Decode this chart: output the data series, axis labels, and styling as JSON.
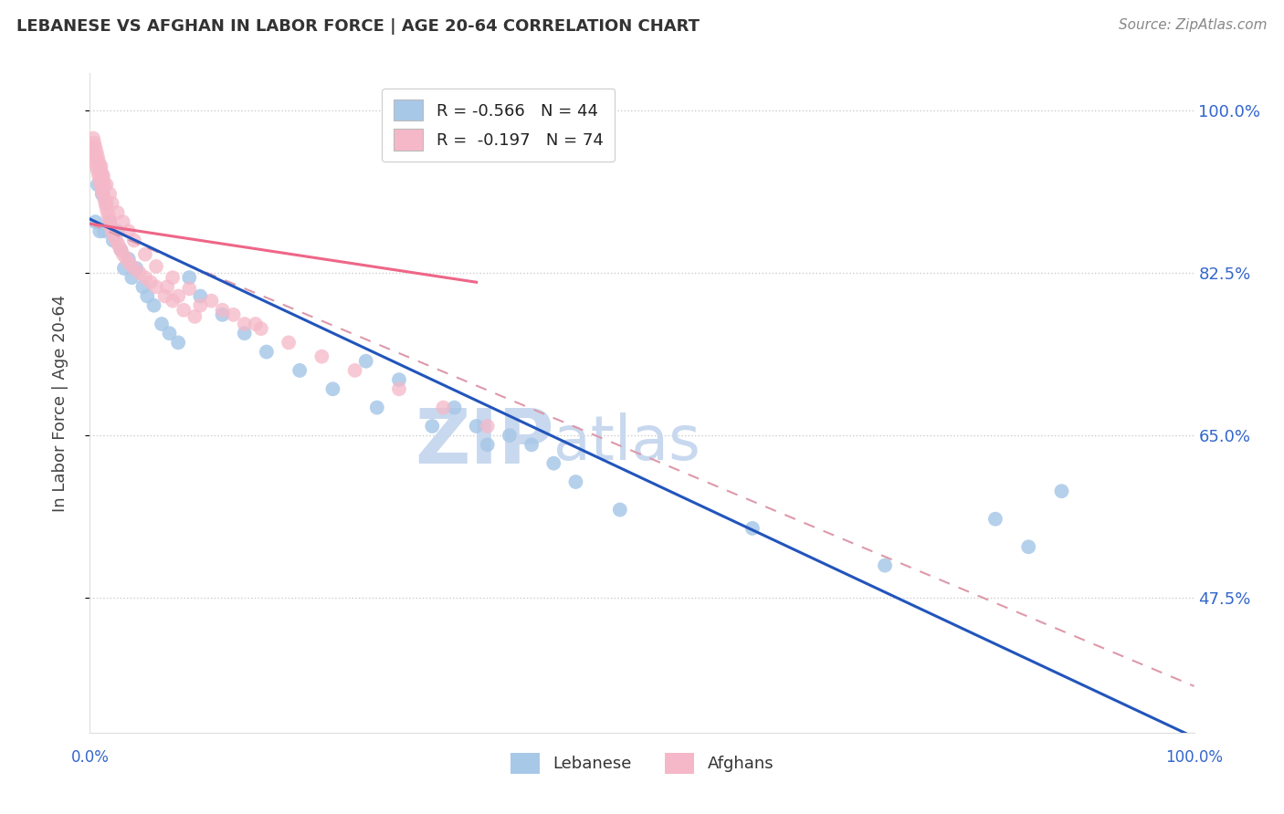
{
  "title": "LEBANESE VS AFGHAN IN LABOR FORCE | AGE 20-64 CORRELATION CHART",
  "source": "Source: ZipAtlas.com",
  "ylabel": "In Labor Force | Age 20-64",
  "yticks": [
    0.475,
    0.65,
    0.825,
    1.0
  ],
  "ytick_labels": [
    "47.5%",
    "65.0%",
    "82.5%",
    "100.0%"
  ],
  "legend_entry1": "R = -0.566   N = 44",
  "legend_entry2": "R =  -0.197   N = 74",
  "legend_label1": "Lebanese",
  "legend_label2": "Afghans",
  "blue_color": "#a8c8e8",
  "pink_color": "#f5b8c8",
  "blue_line_color": "#2255bb",
  "pink_line_color": "#ee6688",
  "dashed_line_color": "#dd99aa",
  "watermark_zip": "ZIP",
  "watermark_atlas": "atlas",
  "watermark_color_zip": "#c8d8ee",
  "watermark_color_atlas": "#c8d8ee",
  "xlim": [
    0.0,
    1.0
  ],
  "ylim": [
    0.33,
    1.04
  ],
  "blue_line_x0": 0.0,
  "blue_line_y0": 0.883,
  "blue_line_x1": 1.0,
  "blue_line_y1": 0.325,
  "pink_line_x0": 0.0,
  "pink_line_y0": 0.878,
  "pink_line_x1": 0.35,
  "pink_line_y1": 0.815,
  "dash_line_x0": 0.0,
  "dash_line_y0": 0.878,
  "dash_line_x1": 1.0,
  "dash_line_y1": 0.38,
  "blue_x": [
    0.005,
    0.007,
    0.009,
    0.011,
    0.013,
    0.015,
    0.018,
    0.021,
    0.025,
    0.028,
    0.031,
    0.035,
    0.038,
    0.042,
    0.048,
    0.052,
    0.058,
    0.065,
    0.072,
    0.08,
    0.09,
    0.1,
    0.12,
    0.14,
    0.16,
    0.19,
    0.22,
    0.26,
    0.31,
    0.36,
    0.25,
    0.28,
    0.33,
    0.38,
    0.42,
    0.6,
    0.72,
    0.82,
    0.35,
    0.4,
    0.44,
    0.48,
    0.85,
    0.88
  ],
  "blue_y": [
    0.88,
    0.92,
    0.87,
    0.91,
    0.87,
    0.9,
    0.88,
    0.86,
    0.87,
    0.85,
    0.83,
    0.84,
    0.82,
    0.83,
    0.81,
    0.8,
    0.79,
    0.77,
    0.76,
    0.75,
    0.82,
    0.8,
    0.78,
    0.76,
    0.74,
    0.72,
    0.7,
    0.68,
    0.66,
    0.64,
    0.73,
    0.71,
    0.68,
    0.65,
    0.62,
    0.55,
    0.51,
    0.56,
    0.66,
    0.64,
    0.6,
    0.57,
    0.53,
    0.59
  ],
  "pink_x": [
    0.002,
    0.003,
    0.003,
    0.004,
    0.004,
    0.005,
    0.005,
    0.006,
    0.006,
    0.007,
    0.007,
    0.008,
    0.008,
    0.009,
    0.009,
    0.01,
    0.01,
    0.011,
    0.011,
    0.012,
    0.012,
    0.013,
    0.013,
    0.014,
    0.015,
    0.016,
    0.017,
    0.018,
    0.019,
    0.02,
    0.022,
    0.024,
    0.026,
    0.028,
    0.03,
    0.033,
    0.036,
    0.04,
    0.045,
    0.05,
    0.055,
    0.06,
    0.068,
    0.075,
    0.085,
    0.095,
    0.01,
    0.012,
    0.015,
    0.018,
    0.02,
    0.025,
    0.03,
    0.035,
    0.04,
    0.05,
    0.06,
    0.075,
    0.09,
    0.11,
    0.13,
    0.155,
    0.18,
    0.21,
    0.24,
    0.28,
    0.32,
    0.36,
    0.12,
    0.15,
    0.07,
    0.08,
    0.1,
    0.14
  ],
  "pink_y": [
    0.96,
    0.955,
    0.97,
    0.95,
    0.965,
    0.945,
    0.96,
    0.94,
    0.955,
    0.935,
    0.95,
    0.93,
    0.945,
    0.925,
    0.94,
    0.92,
    0.935,
    0.915,
    0.93,
    0.91,
    0.925,
    0.905,
    0.92,
    0.9,
    0.895,
    0.89,
    0.885,
    0.88,
    0.875,
    0.87,
    0.865,
    0.86,
    0.855,
    0.85,
    0.845,
    0.84,
    0.835,
    0.83,
    0.825,
    0.82,
    0.815,
    0.81,
    0.8,
    0.795,
    0.785,
    0.778,
    0.94,
    0.93,
    0.92,
    0.91,
    0.9,
    0.89,
    0.88,
    0.87,
    0.86,
    0.845,
    0.832,
    0.82,
    0.808,
    0.795,
    0.78,
    0.765,
    0.75,
    0.735,
    0.72,
    0.7,
    0.68,
    0.66,
    0.785,
    0.77,
    0.81,
    0.8,
    0.79,
    0.77
  ]
}
